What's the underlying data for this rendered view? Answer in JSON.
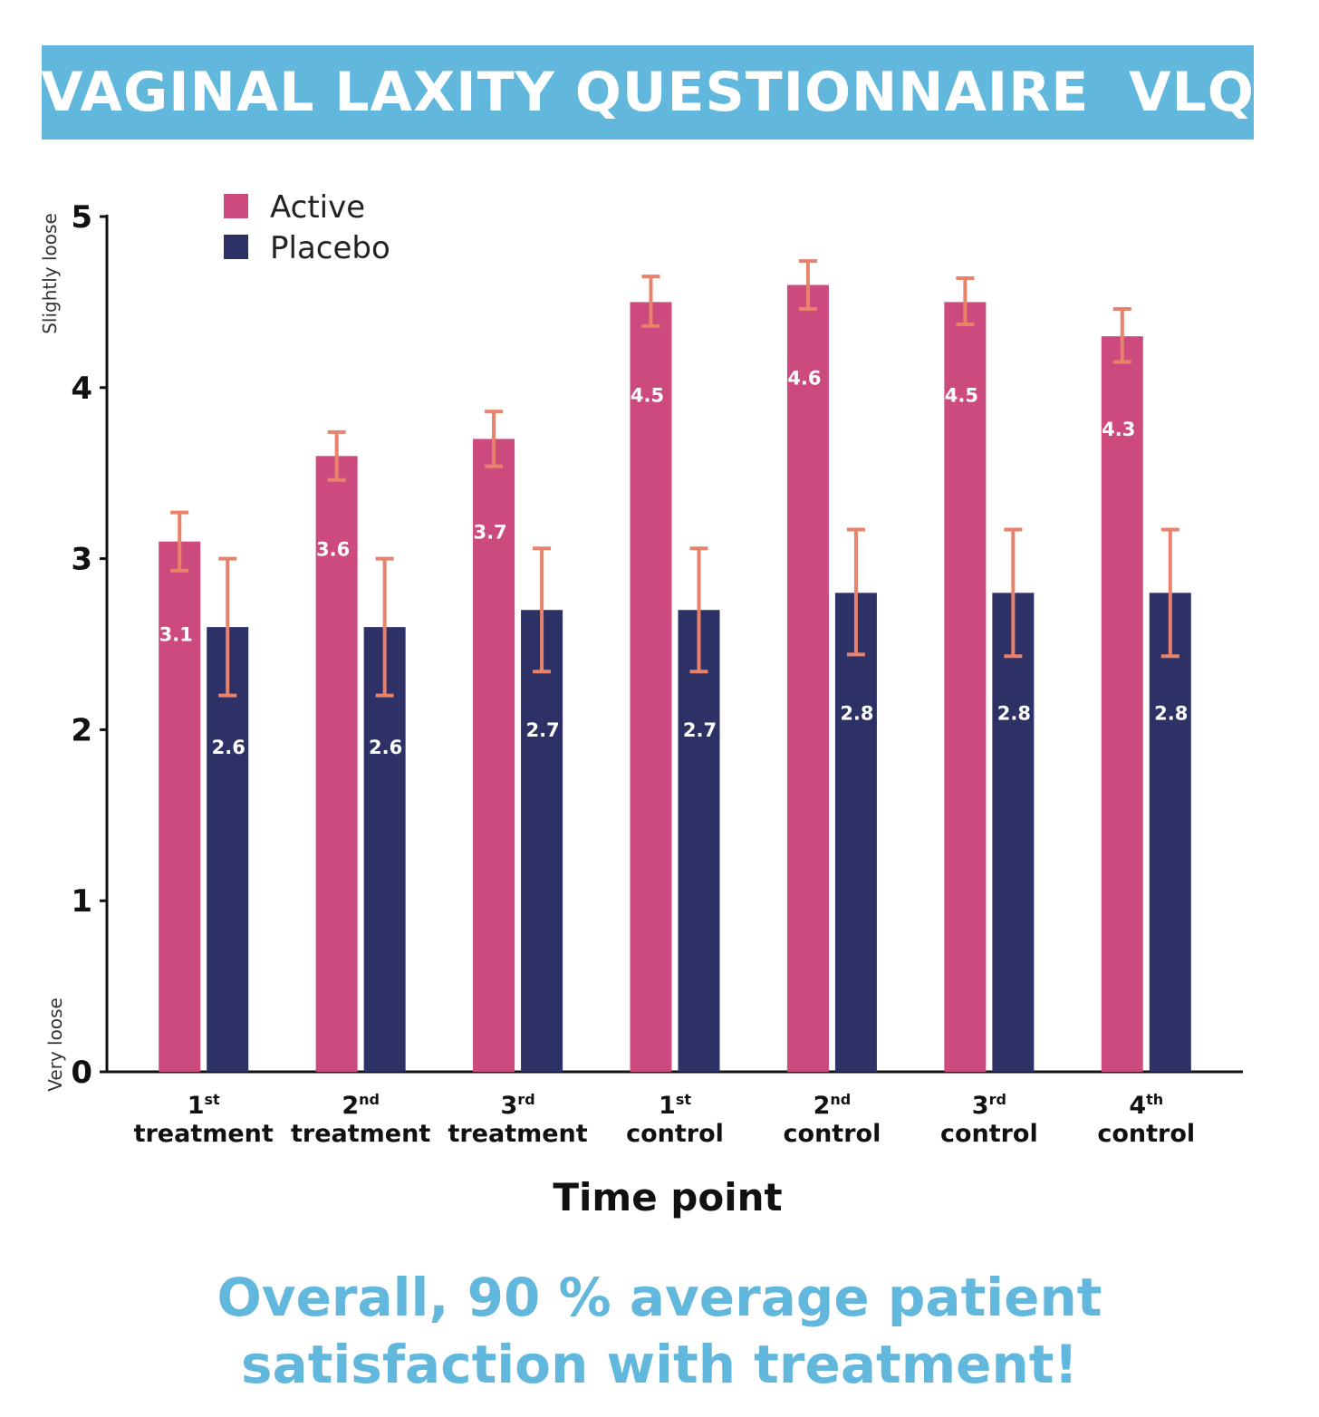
{
  "title": "VAGINAL LAXITY QUESTIONNAIRE  VLQ",
  "footer": {
    "line1": "Overall, 90 % average patient",
    "line2": "satisfaction with treatment!"
  },
  "colors": {
    "banner": "#62b8dc",
    "active": "#cc4a7e",
    "placebo": "#2e3166",
    "error_bar": "#e8826b",
    "footer_text": "#62b8dc"
  },
  "chart_data": {
    "type": "bar",
    "title": "VAGINAL LAXITY QUESTIONNAIRE  VLQ",
    "xlabel": "Time point",
    "ylabel": "",
    "y_annotations": {
      "top": "Slightly loose",
      "bottom": "Very loose"
    },
    "ylim": [
      0,
      5
    ],
    "yticks": [
      0,
      1,
      2,
      3,
      4,
      5
    ],
    "legend_position": "top-left",
    "categories": [
      {
        "num": "1",
        "sup": "st",
        "word": "treatment"
      },
      {
        "num": "2",
        "sup": "nd",
        "word": "treatment"
      },
      {
        "num": "3",
        "sup": "rd",
        "word": "treatment"
      },
      {
        "num": "1",
        "sup": "st",
        "word": "control"
      },
      {
        "num": "2",
        "sup": "nd",
        "word": "control"
      },
      {
        "num": "3",
        "sup": "rd",
        "word": "control"
      },
      {
        "num": "4",
        "sup": "th",
        "word": "control"
      }
    ],
    "series": [
      {
        "name": "Active",
        "values": [
          3.1,
          3.6,
          3.7,
          4.5,
          4.6,
          4.5,
          4.3
        ],
        "labels": [
          "3.1",
          "3.6",
          "3.7",
          "4.5",
          "4.6",
          "4.5",
          "4.3"
        ],
        "error_low": [
          2.93,
          3.46,
          3.54,
          4.36,
          4.46,
          4.37,
          4.15
        ],
        "error_high": [
          3.27,
          3.74,
          3.86,
          4.65,
          4.74,
          4.64,
          4.46
        ]
      },
      {
        "name": "Placebo",
        "values": [
          2.6,
          2.6,
          2.7,
          2.7,
          2.8,
          2.8,
          2.8
        ],
        "labels": [
          "2.6",
          "2.6",
          "2.7",
          "2.7",
          "2.8",
          "2.8",
          "2.8"
        ],
        "error_low": [
          2.2,
          2.2,
          2.34,
          2.34,
          2.44,
          2.43,
          2.43
        ],
        "error_high": [
          3.0,
          3.0,
          3.06,
          3.06,
          3.17,
          3.17,
          3.17
        ]
      }
    ]
  }
}
